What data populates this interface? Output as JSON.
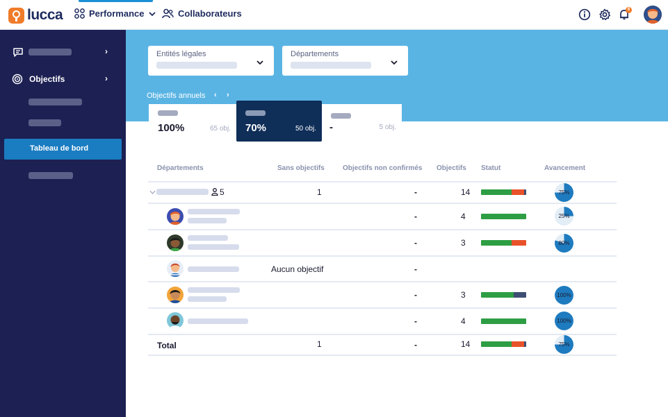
{
  "app": {
    "logo_text": "lucca"
  },
  "topbar": {
    "nav": [
      {
        "label": "Performance",
        "icon": "grid-icon"
      },
      {
        "label": "Collaborateurs",
        "icon": "users-icon"
      }
    ],
    "notification_count": "6"
  },
  "sidebar": {
    "items": [
      {
        "label": "",
        "icon": "chat-icon"
      },
      {
        "label": "Objectifs",
        "icon": "target-icon"
      }
    ],
    "active_item": "Tableau de bord"
  },
  "filters": [
    {
      "label": "Entités légales"
    },
    {
      "label": "Départements"
    }
  ],
  "period": {
    "label": "Objectifs annuels",
    "prev": "‹",
    "next": "›"
  },
  "cards": [
    {
      "pct": "100%",
      "count": "65 obj."
    },
    {
      "pct": "70%",
      "count": "50 obj."
    },
    {
      "pct": "-",
      "count": "5 obj."
    }
  ],
  "table": {
    "headers": [
      "Départements",
      "Sans objectifs",
      "Objectifs non confirmés",
      "Objectifs",
      "Statut",
      "Avancement"
    ],
    "group": {
      "member_count": "5",
      "sans": "1",
      "non_confirmes": "-",
      "objectifs": "14",
      "avancement": "75%",
      "status": [
        0.68,
        0.27,
        0.05
      ]
    },
    "rows": [
      {
        "sans": "",
        "non_confirmes": "-",
        "objectifs": "4",
        "avancement": "25%",
        "progress": 0.25,
        "status": [
          1.0,
          0,
          0
        ]
      },
      {
        "sans": "",
        "non_confirmes": "-",
        "objectifs": "3",
        "avancement": "80%",
        "progress": 0.8,
        "status": [
          0.68,
          0.32,
          0
        ]
      },
      {
        "sans": "Aucun objectif",
        "non_confirmes": "-",
        "objectifs": "",
        "avancement": "",
        "progress": null,
        "status": null
      },
      {
        "sans": "",
        "non_confirmes": "-",
        "objectifs": "3",
        "avancement": "100%",
        "progress": 1.0,
        "status": [
          0.72,
          0,
          0.28
        ]
      },
      {
        "sans": "",
        "non_confirmes": "-",
        "objectifs": "4",
        "avancement": "100%",
        "progress": 1.0,
        "status": [
          1.0,
          0,
          0
        ]
      }
    ],
    "total": {
      "label": "Total",
      "sans": "1",
      "non_confirmes": "-",
      "objectifs": "14",
      "avancement": "75%",
      "status": [
        0.68,
        0.27,
        0.05
      ]
    }
  },
  "colors": {
    "green": "#2e9e44",
    "red": "#e8522a",
    "navy": "#3e4e72",
    "pie_blue": "#1f7bbf",
    "pie_track": "#e3edf6"
  }
}
